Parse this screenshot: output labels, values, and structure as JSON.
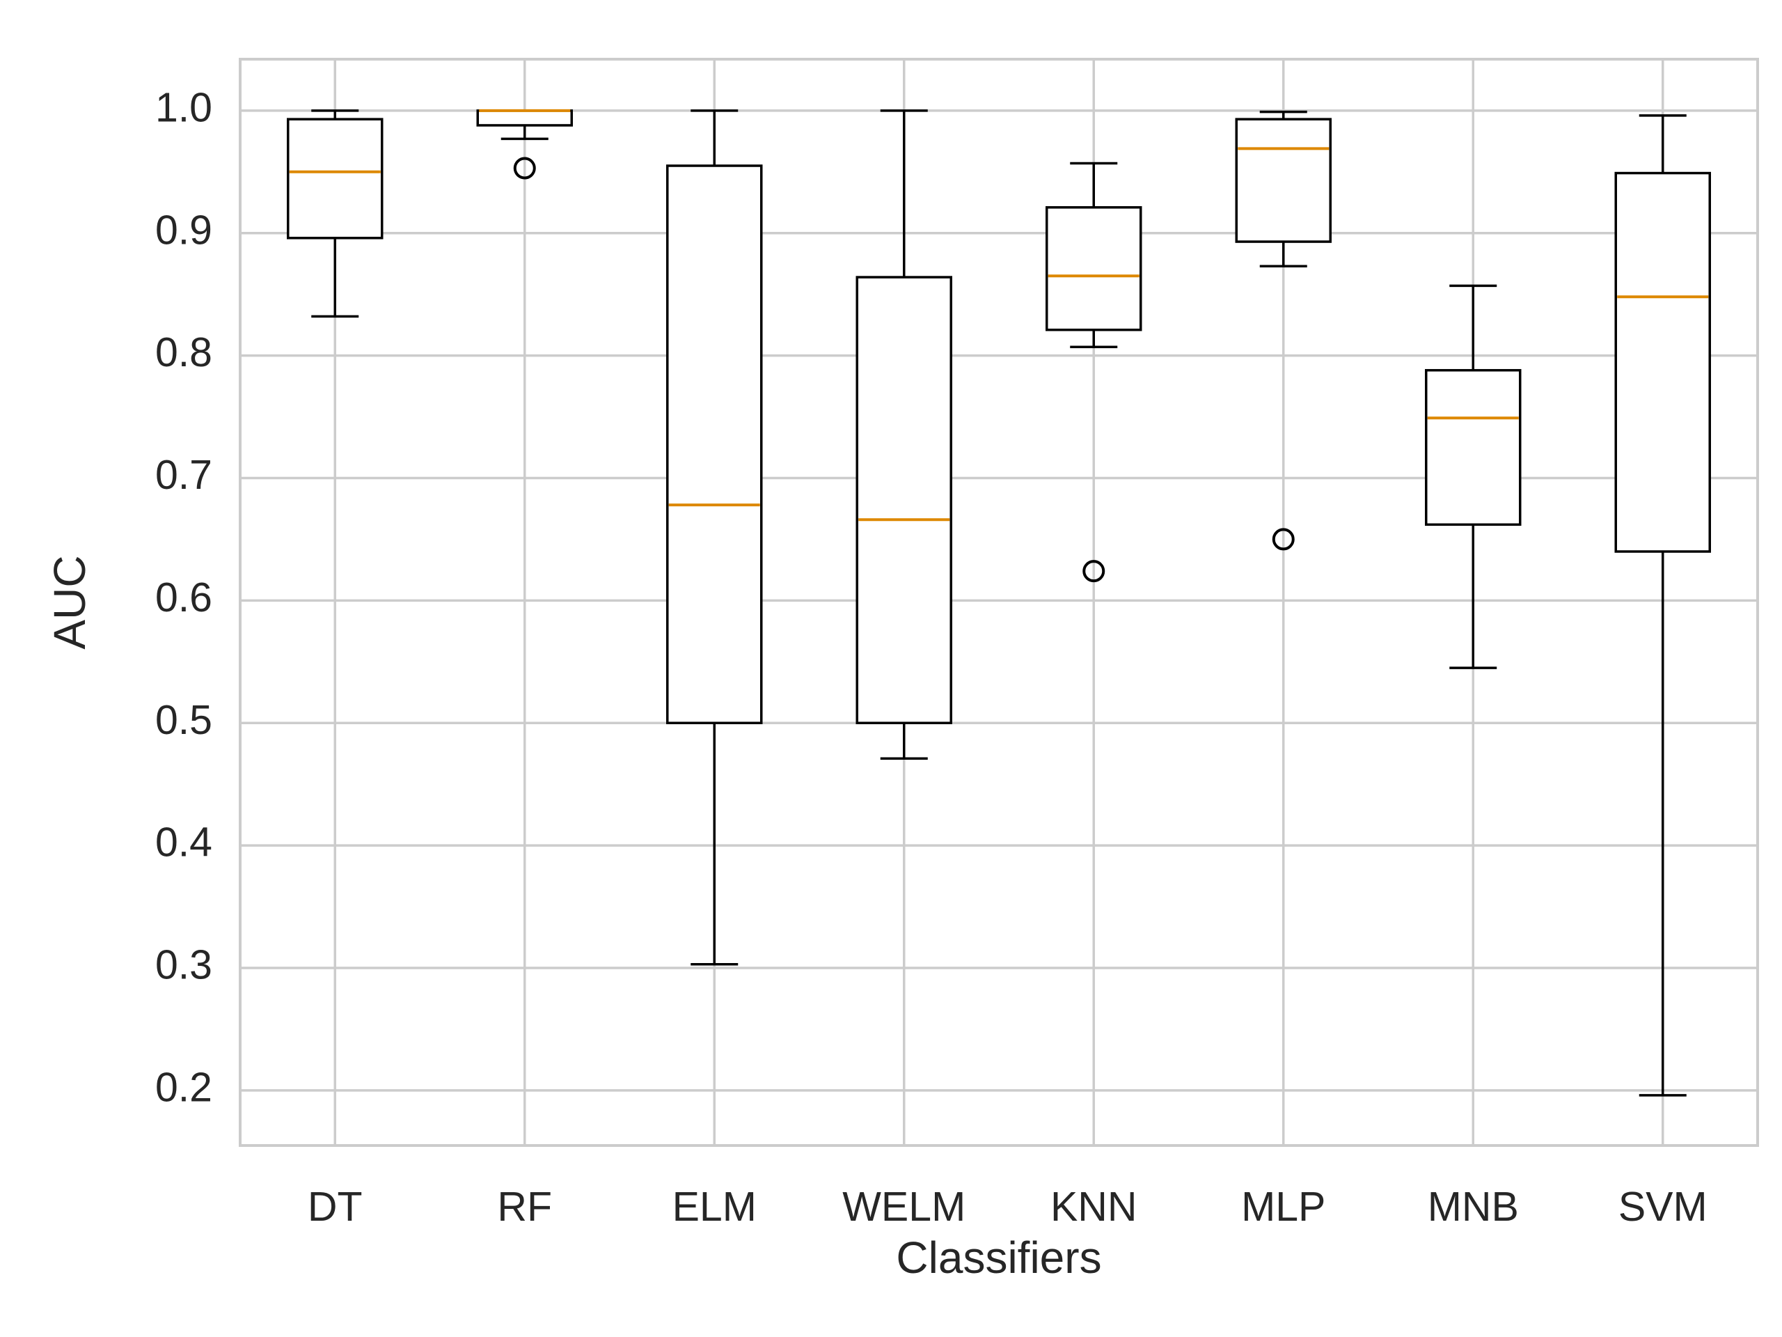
{
  "chart_data": {
    "type": "boxplot",
    "title": "",
    "xlabel": "Classifiers",
    "ylabel": "AUC",
    "ylim": [
      0.155,
      1.042
    ],
    "yticks": [
      0.2,
      0.3,
      0.4,
      0.5,
      0.6,
      0.7,
      0.8,
      0.9,
      1.0
    ],
    "ytick_labels": [
      "0.2",
      "0.3",
      "0.4",
      "0.5",
      "0.6",
      "0.7",
      "0.8",
      "0.9",
      "1.0"
    ],
    "grid": true,
    "legend": "none",
    "colors": {
      "box": "#000000",
      "median": "#DD8800",
      "grid": "#CCCCCC",
      "text": "#262626",
      "background": "#FFFFFF"
    },
    "categories": [
      "DT",
      "RF",
      "ELM",
      "WELM",
      "KNN",
      "MLP",
      "MNB",
      "SVM"
    ],
    "boxes": [
      {
        "name": "DT",
        "whislo": 0.832,
        "q1": 0.896,
        "med": 0.95,
        "q3": 0.993,
        "whishi": 1.0,
        "fliers": []
      },
      {
        "name": "RF",
        "whislo": 0.977,
        "q1": 0.988,
        "med": 1.0,
        "q3": 1.0,
        "whishi": 1.0,
        "fliers": [
          0.953
        ]
      },
      {
        "name": "ELM",
        "whislo": 0.303,
        "q1": 0.5,
        "med": 0.678,
        "q3": 0.955,
        "whishi": 1.0,
        "fliers": []
      },
      {
        "name": "WELM",
        "whislo": 0.471,
        "q1": 0.5,
        "med": 0.666,
        "q3": 0.864,
        "whishi": 1.0,
        "fliers": []
      },
      {
        "name": "KNN",
        "whislo": 0.807,
        "q1": 0.821,
        "med": 0.865,
        "q3": 0.921,
        "whishi": 0.957,
        "fliers": [
          0.624
        ]
      },
      {
        "name": "MLP",
        "whislo": 0.873,
        "q1": 0.893,
        "med": 0.969,
        "q3": 0.993,
        "whishi": 0.999,
        "fliers": [
          0.65
        ]
      },
      {
        "name": "MNB",
        "whislo": 0.545,
        "q1": 0.662,
        "med": 0.749,
        "q3": 0.788,
        "whishi": 0.857,
        "fliers": []
      },
      {
        "name": "SVM",
        "whislo": 0.196,
        "q1": 0.64,
        "med": 0.848,
        "q3": 0.949,
        "whishi": 0.996,
        "fliers": []
      }
    ]
  }
}
